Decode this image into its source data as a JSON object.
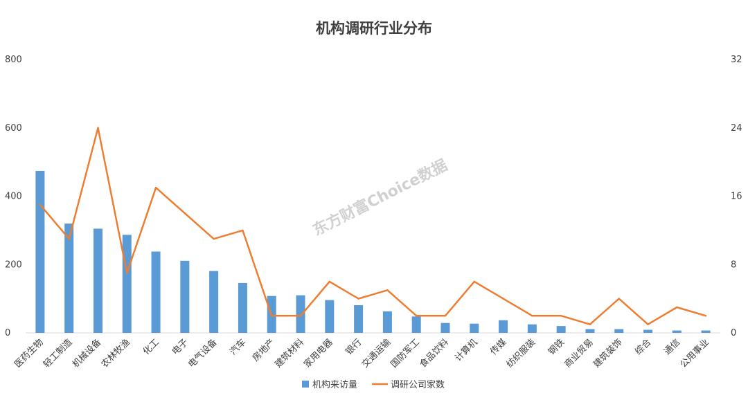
{
  "chart_data": {
    "type": "bar+line",
    "title": "机构调研行业分布",
    "categories": [
      "医药生物",
      "轻工制造",
      "机械设备",
      "农林牧渔",
      "化工",
      "电子",
      "电气设备",
      "汽车",
      "房地产",
      "建筑材料",
      "家用电器",
      "银行",
      "交通运输",
      "国防军工",
      "食品饮料",
      "计算机",
      "传媒",
      "纺织服装",
      "钢铁",
      "商业贸易",
      "建筑装饰",
      "综合",
      "通信",
      "公用事业"
    ],
    "series": [
      {
        "name": "机构来访量",
        "type": "bar",
        "axis": "left",
        "color": "#5b9bd5",
        "values": [
          474,
          320,
          305,
          287,
          238,
          211,
          181,
          146,
          108,
          110,
          96,
          81,
          63,
          48,
          29,
          27,
          37,
          25,
          20,
          11,
          11,
          9,
          7,
          7
        ]
      },
      {
        "name": "调研公司家数",
        "type": "line",
        "axis": "right",
        "color": "#ed7d31",
        "values": [
          15,
          11,
          24,
          7,
          17,
          14,
          11,
          12,
          2,
          2,
          6,
          4,
          5,
          2,
          2,
          6,
          4,
          2,
          2,
          1,
          4,
          1,
          3,
          2
        ]
      }
    ],
    "y_left": {
      "min": 0,
      "max": 800,
      "ticks": [
        "0",
        "200",
        "400",
        "600",
        "800"
      ]
    },
    "y_right": {
      "min": 0,
      "max": 32,
      "ticks": [
        "0",
        "8",
        "16",
        "24",
        "32"
      ]
    },
    "grid": false,
    "legend_position": "bottom"
  },
  "watermark": "东方财富Choice数据"
}
